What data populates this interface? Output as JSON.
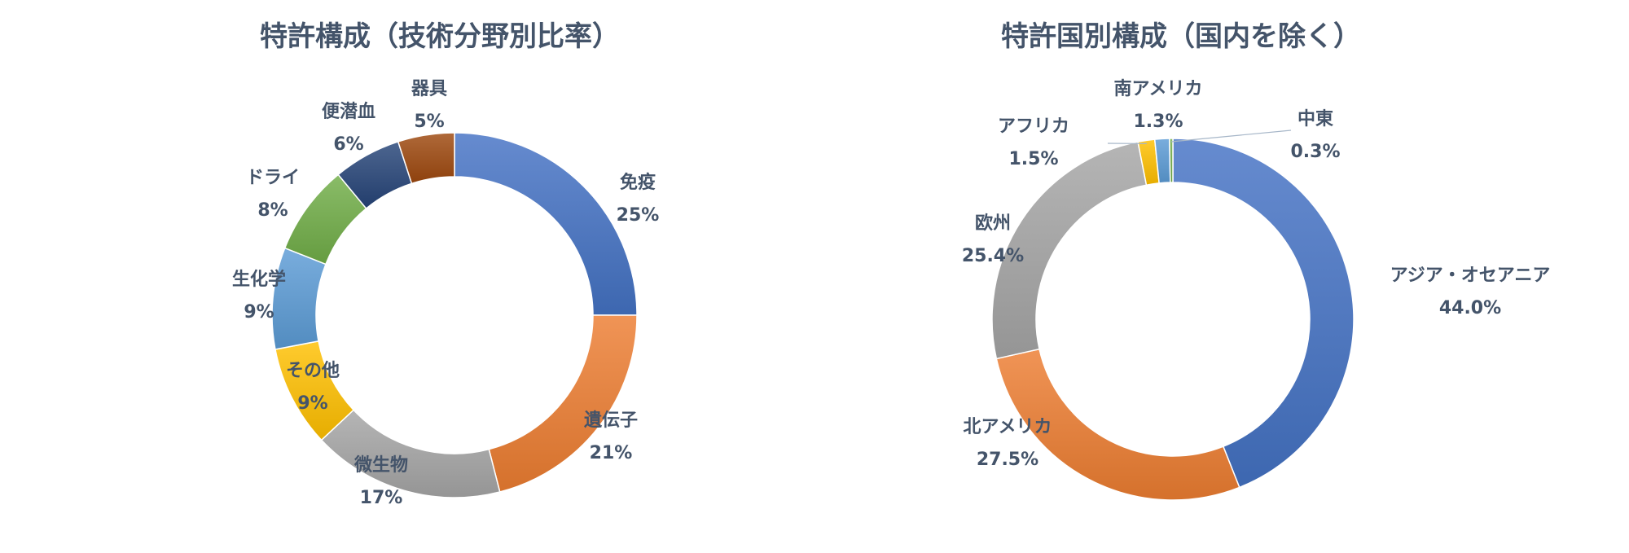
{
  "chart_data": [
    {
      "type": "donut",
      "title": "特許構成（技術分野別比率）",
      "categories": [
        "免疫",
        "遺伝子",
        "微生物",
        "その他",
        "生化学",
        "ドライ",
        "便潜血",
        "器具"
      ],
      "values": [
        25,
        21,
        17,
        9,
        9,
        8,
        6,
        5
      ],
      "value_labels": [
        "25%",
        "21%",
        "17%",
        "9%",
        "9%",
        "8%",
        "6%",
        "5%"
      ],
      "colors": [
        "#4472c4",
        "#ed7d31",
        "#a5a5a5",
        "#ffc000",
        "#5b9bd5",
        "#70ad47",
        "#264478",
        "#9e480e"
      ]
    },
    {
      "type": "donut",
      "title": "特許国別構成（国内を除く）",
      "categories": [
        "アジア・オセアニア",
        "北アメリカ",
        "欧州",
        "アフリカ",
        "南アメリカ",
        "中東"
      ],
      "values": [
        44.0,
        27.5,
        25.4,
        1.5,
        1.3,
        0.3
      ],
      "value_labels": [
        "44.0%",
        "27.5%",
        "25.4%",
        "1.5%",
        "1.3%",
        "0.3%"
      ],
      "colors": [
        "#4472c4",
        "#ed7d31",
        "#a5a5a5",
        "#ffc000",
        "#5b9bd5",
        "#70ad47"
      ]
    }
  ]
}
